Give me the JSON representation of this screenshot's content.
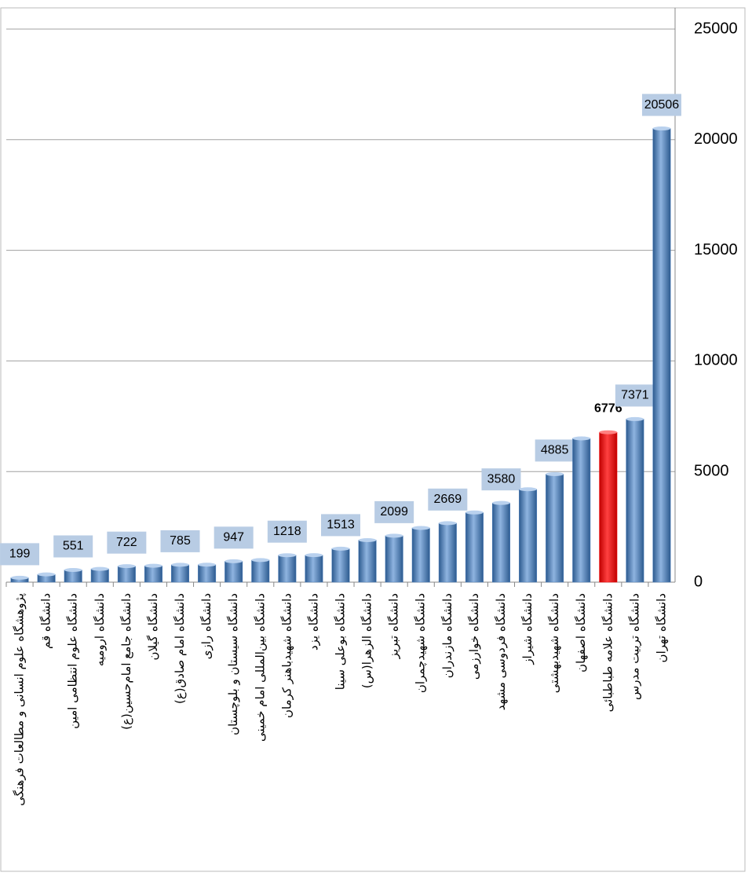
{
  "chart_data": {
    "type": "bar",
    "categories": [
      "پژوهشگاه علوم انسانی و مطالعات فرهنگی",
      "دانشگاه قم",
      "دانشگاه علوم انتظامی امین",
      "دانشگاه ارومیه",
      "دانشگاه جامع امام‌حسین(ع)",
      "دانشگاه گیلان",
      "دانشگاه امام صادق(ع)",
      "دانشگاه رازی",
      "دانشگاه سیستان و بلوچستان",
      "دانشگاه بین‌المللی امام خمینی",
      "دانشگاه شهیدباهنر کرمان",
      "دانشگاه یزد",
      "دانشگاه بوعلی سینا",
      "دانشگاه الزهرا(س)",
      "دانشگاه تبریز",
      "دانشگاه شهیدچمران",
      "دانشگاه مازندران",
      "دانشگاه خوارزمی",
      "دانشگاه فردوسی مشهد",
      "دانشگاه شیراز",
      "دانشگاه شهیدبهشتی",
      "دانشگاه اصفهان",
      "دانشگاه علامه طباطبائی",
      "دانشگاه تربیت مدرس",
      "دانشگاه تهران"
    ],
    "values": [
      199,
      350,
      551,
      600,
      722,
      740,
      785,
      790,
      947,
      1000,
      1218,
      1220,
      1513,
      1900,
      2099,
      2450,
      2669,
      3150,
      3580,
      4200,
      4885,
      6500,
      6776,
      7371,
      20506
    ],
    "value_labels": [
      "199",
      null,
      "551",
      null,
      "722",
      null,
      "785",
      null,
      "947",
      null,
      "1218",
      null,
      "1513",
      null,
      "2099",
      null,
      "2669",
      null,
      "3580",
      null,
      "4885",
      null,
      "6776",
      "7371",
      "20506"
    ],
    "colors": [
      "#4f81bd",
      "#4f81bd",
      "#4f81bd",
      "#4f81bd",
      "#4f81bd",
      "#4f81bd",
      "#4f81bd",
      "#4f81bd",
      "#4f81bd",
      "#4f81bd",
      "#4f81bd",
      "#4f81bd",
      "#4f81bd",
      "#4f81bd",
      "#4f81bd",
      "#4f81bd",
      "#4f81bd",
      "#4f81bd",
      "#4f81bd",
      "#4f81bd",
      "#4f81bd",
      "#4f81bd",
      "#ff0000",
      "#4f81bd",
      "#4f81bd"
    ],
    "ylim": [
      0,
      25000
    ],
    "yticks": [
      0,
      5000,
      10000,
      15000,
      20000,
      25000
    ],
    "grid": true,
    "y_axis_side": "right"
  }
}
